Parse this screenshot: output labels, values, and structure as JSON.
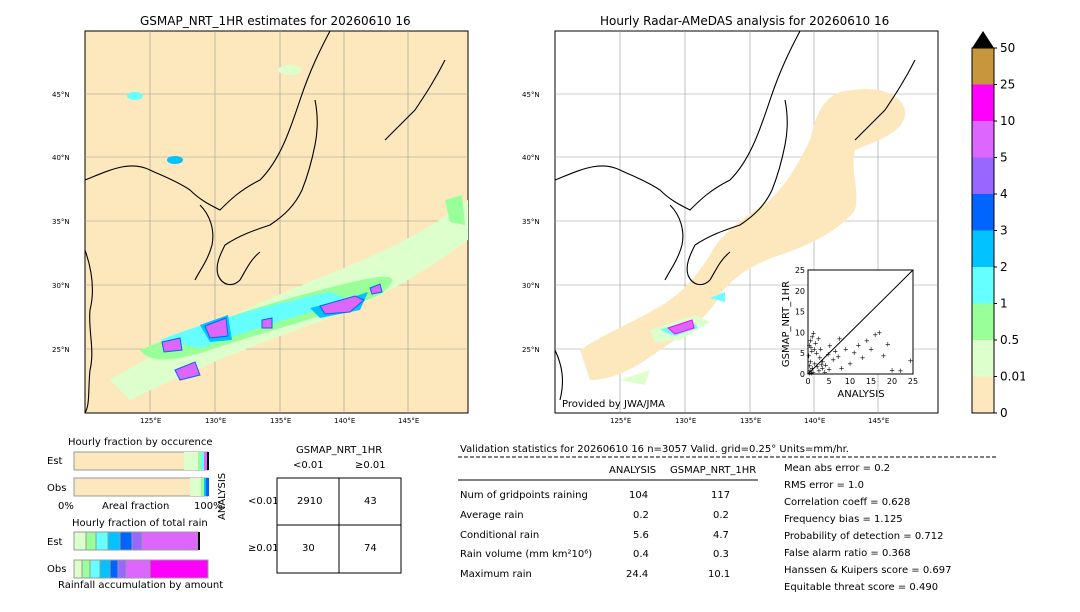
{
  "left_map": {
    "title": "GSMAP_NRT_1HR estimates for 20260610 16",
    "lat_labels": [
      "45°N",
      "40°N",
      "35°N",
      "30°N",
      "25°N"
    ],
    "lon_labels": [
      "125°E",
      "130°E",
      "135°E",
      "140°E",
      "145°E"
    ]
  },
  "right_map": {
    "title": "Hourly Radar-AMeDAS analysis for 20260610 16",
    "lat_labels": [
      "45°N",
      "40°N",
      "35°N",
      "30°N",
      "25°N"
    ],
    "lon_labels": [
      "125°E",
      "130°E",
      "135°E",
      "140°E",
      "145°E"
    ],
    "credit": "Provided by JWA/JMA"
  },
  "colorbar": {
    "labels": [
      "50",
      "25",
      "10",
      "5",
      "4",
      "3",
      "2",
      "1",
      "0.5",
      "0.01",
      "0"
    ],
    "colors": [
      "#c8963c",
      "#ff00ff",
      "#dd66ff",
      "#9966ff",
      "#0064ff",
      "#00c3ff",
      "#66ffff",
      "#99ff99",
      "#ddffcc",
      "#fde8bd"
    ]
  },
  "fraction_occurrence": {
    "title": "Hourly fraction by occurence",
    "row_labels": [
      "Est",
      "Obs"
    ],
    "axis_left": "0%",
    "axis_mid": "Areal fraction",
    "axis_right": "100%"
  },
  "fraction_total": {
    "title": "Hourly fraction of total rain",
    "row_labels": [
      "Est",
      "Obs"
    ],
    "footer": "Rainfall accumulation by amount"
  },
  "contingency": {
    "title": "GSMAP_NRT_1HR",
    "col_headers": [
      "<0.01",
      "≥0.01"
    ],
    "row_axis": "ANALYSIS",
    "row_headers": [
      "<0.01",
      "≥0.01"
    ],
    "cells": [
      [
        "2910",
        "43"
      ],
      [
        "30",
        "74"
      ]
    ]
  },
  "validation": {
    "header": "Validation statistics for 20260610 16  n=3057 Valid. grid=0.25° Units=mm/hr.",
    "col_analysis": "ANALYSIS",
    "col_gsmap": "GSMAP_NRT_1HR",
    "rows": [
      {
        "label": "Num of gridpoints raining",
        "analysis": "104",
        "gsmap": "117"
      },
      {
        "label": "Average rain",
        "analysis": "0.2",
        "gsmap": "0.2"
      },
      {
        "label": "Conditional rain",
        "analysis": "5.6",
        "gsmap": "4.7"
      },
      {
        "label": "Rain volume (mm km²10⁶)",
        "analysis": "0.4",
        "gsmap": "0.3"
      },
      {
        "label": "Maximum rain",
        "analysis": "24.4",
        "gsmap": "10.1"
      }
    ],
    "scores": [
      "Mean abs error =    0.2",
      "RMS error =    1.0",
      "Correlation coeff =  0.628",
      "Frequency bias =  1.125",
      "Probability of detection =  0.712",
      "False alarm ratio =  0.368",
      "Hanssen & Kuipers score =  0.697",
      "Equitable threat score =  0.490"
    ]
  },
  "chart_data": {
    "type": "scatter",
    "xlabel": "ANALYSIS",
    "ylabel": "GSMAP_NRT_1HR",
    "xlim": [
      0,
      25
    ],
    "ylim": [
      0,
      25
    ],
    "xticks": [
      "0",
      "5",
      "10",
      "15",
      "20",
      "25"
    ],
    "yticks": [
      "0",
      "5",
      "10",
      "15",
      "20",
      "25"
    ],
    "points": [
      [
        0.3,
        0.2
      ],
      [
        0.5,
        0.8
      ],
      [
        0.8,
        0.3
      ],
      [
        1,
        1.5
      ],
      [
        1.2,
        0.5
      ],
      [
        0.4,
        2
      ],
      [
        0.6,
        3
      ],
      [
        0.2,
        4.5
      ],
      [
        0.9,
        5.5
      ],
      [
        1.5,
        6
      ],
      [
        0.3,
        7
      ],
      [
        0.6,
        8
      ],
      [
        1,
        9
      ],
      [
        1.8,
        7.5
      ],
      [
        2.5,
        8.5
      ],
      [
        3,
        6
      ],
      [
        2,
        5
      ],
      [
        2.8,
        4
      ],
      [
        3.5,
        3
      ],
      [
        1.6,
        2.5
      ],
      [
        2.2,
        1.8
      ],
      [
        2.6,
        0.8
      ],
      [
        3.4,
        1.4
      ],
      [
        4.2,
        2.2
      ],
      [
        4.8,
        4.8
      ],
      [
        5.2,
        6.8
      ],
      [
        6,
        3.5
      ],
      [
        6.5,
        5.5
      ],
      [
        7.2,
        4.2
      ],
      [
        8,
        1.5
      ],
      [
        9,
        6
      ],
      [
        10,
        2.5
      ],
      [
        11,
        5.2
      ],
      [
        12,
        7
      ],
      [
        13,
        4
      ],
      [
        14,
        8
      ],
      [
        15,
        6
      ],
      [
        16,
        9.5
      ],
      [
        17,
        10
      ],
      [
        18,
        4.5
      ],
      [
        19,
        7.2
      ],
      [
        20,
        1
      ],
      [
        22,
        0.8
      ],
      [
        24.4,
        3.2
      ],
      [
        1.3,
        9.8
      ],
      [
        0.7,
        6.5
      ],
      [
        4,
        0.5
      ],
      [
        5,
        1.2
      ],
      [
        3.2,
        2.3
      ],
      [
        7.5,
        8.5
      ]
    ]
  }
}
